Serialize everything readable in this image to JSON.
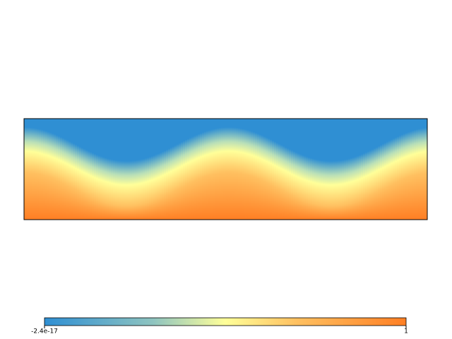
{
  "chart_data": {
    "type": "field",
    "colormap": [
      "#2f8fd3",
      "#ffff99",
      "#ff7f24"
    ],
    "clim": [
      -2.4e-17,
      1
    ],
    "cticks": [
      -2.4e-17,
      1
    ]
  }
}
